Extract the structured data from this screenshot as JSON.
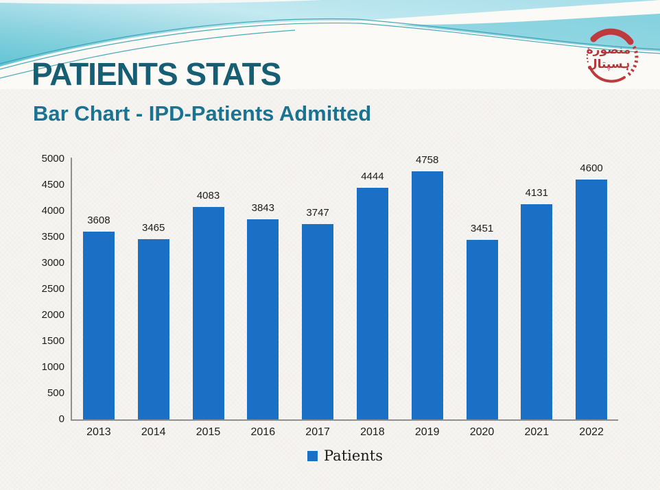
{
  "slide": {
    "title": "PATIENTS STATS",
    "subtitle": "Bar Chart - IPD-Patients Admitted",
    "title_color": "#165E74",
    "subtitle_color": "#1A7390"
  },
  "logo": {
    "line1": "منصوره",
    "line2": "ہسپتال",
    "stamp_color": "#BE3A3C"
  },
  "chart_data": {
    "type": "bar",
    "title": "",
    "xlabel": "",
    "ylabel": "",
    "categories": [
      "2013",
      "2014",
      "2015",
      "2016",
      "2017",
      "2018",
      "2019",
      "2020",
      "2021",
      "2022"
    ],
    "series": [
      {
        "name": "Patients",
        "values": [
          3608,
          3465,
          4083,
          3843,
          3747,
          4444,
          4758,
          3451,
          4131,
          4600
        ]
      }
    ],
    "data_labels": true,
    "ylim": [
      0,
      5000
    ],
    "yticks": [
      0,
      500,
      1000,
      1500,
      2000,
      2500,
      3000,
      3500,
      4000,
      4500,
      5000
    ],
    "grid": false,
    "legend_position": "bottom",
    "bar_color": "#1B70C5",
    "axis_color": "#8f8f8f"
  }
}
